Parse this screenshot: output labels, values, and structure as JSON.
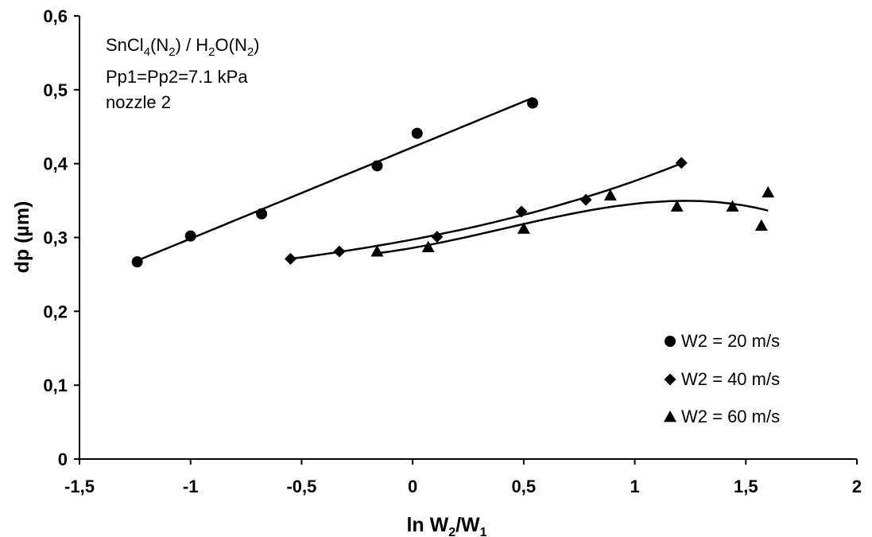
{
  "chart_data": {
    "type": "scatter",
    "xlabel": "ln W2/W1",
    "ylabel": "dp (µm)",
    "xlim": [
      -1.5,
      2
    ],
    "ylim": [
      0,
      0.6
    ],
    "xticks": [
      -1.5,
      -1,
      -0.5,
      0,
      0.5,
      1,
      1.5,
      2
    ],
    "xtick_labels": [
      "-1,5",
      "-1",
      "-0,5",
      "0",
      "0,5",
      "1",
      "1,5",
      "2"
    ],
    "yticks": [
      0,
      0.1,
      0.2,
      0.3,
      0.4,
      0.5,
      0.6
    ],
    "ytick_labels": [
      "0",
      "0,1",
      "0,2",
      "0,3",
      "0,4",
      "0,5",
      "0,6"
    ],
    "grid": false,
    "legend_position": "bottom-right",
    "annotation": {
      "line1": "SnCl4(N2) / H2O(N2)",
      "line2": "Pp1=Pp2=7.1 kPa",
      "line3": "nozzle 2"
    },
    "series": [
      {
        "name": "W2 = 20 m/s",
        "marker": "circle",
        "points": [
          [
            -1.24,
            0.267
          ],
          [
            -1.0,
            0.302
          ],
          [
            -0.68,
            0.332
          ],
          [
            -0.16,
            0.397
          ],
          [
            0.02,
            0.441
          ],
          [
            0.54,
            0.482
          ]
        ],
        "trend": "linear",
        "trend_range": [
          -1.24,
          0.54
        ]
      },
      {
        "name": "W2 = 40 m/s",
        "marker": "diamond",
        "points": [
          [
            -0.55,
            0.271
          ],
          [
            -0.33,
            0.281
          ],
          [
            0.11,
            0.301
          ],
          [
            0.49,
            0.335
          ],
          [
            0.78,
            0.351
          ],
          [
            1.21,
            0.401
          ]
        ],
        "trend": "polynomial",
        "trend_range": [
          -0.55,
          1.21
        ]
      },
      {
        "name": "W2 = 60 m/s",
        "marker": "triangle",
        "points": [
          [
            -0.16,
            0.281
          ],
          [
            0.07,
            0.287
          ],
          [
            0.5,
            0.312
          ],
          [
            0.89,
            0.357
          ],
          [
            1.19,
            0.342
          ],
          [
            1.44,
            0.342
          ],
          [
            1.57,
            0.316
          ],
          [
            1.6,
            0.361
          ]
        ],
        "trend": "polynomial",
        "trend_range": [
          -0.16,
          1.6
        ]
      }
    ]
  }
}
